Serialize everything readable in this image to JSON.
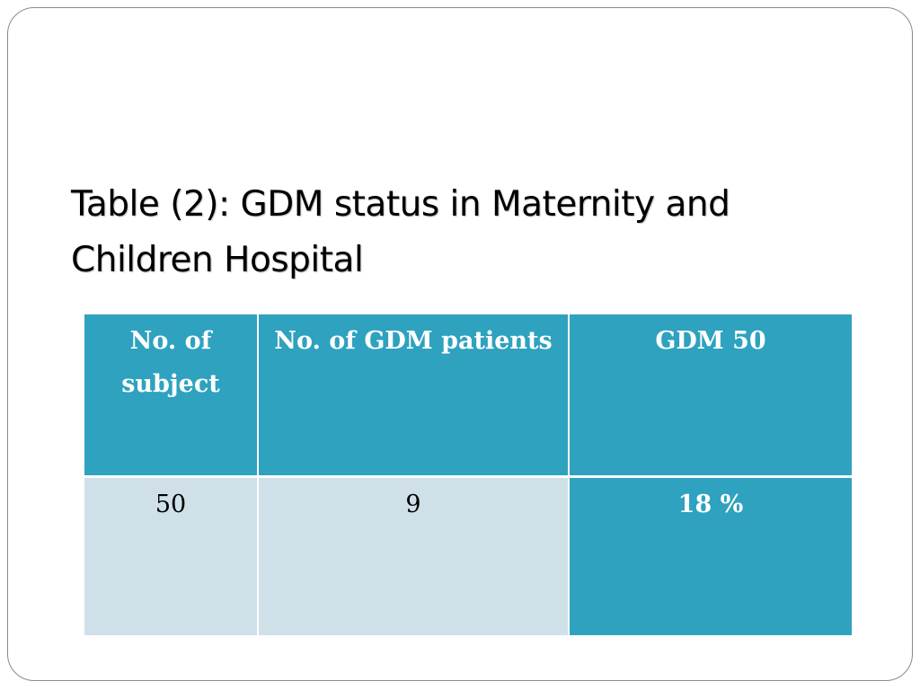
{
  "slide": {
    "title": "Table (2):  GDM status in Maternity and Children Hospital"
  },
  "table": {
    "headers": [
      "No. of subject",
      "No. of GDM patients",
      "GDM 50"
    ],
    "rows": [
      [
        "50",
        "9",
        "18 %"
      ]
    ]
  },
  "colors": {
    "header_fill": "#2ea2bf",
    "cell_fill": "#cfe0e9",
    "highlight_fill": "#2ea2bf",
    "frame_border": "#8a8a8a"
  }
}
